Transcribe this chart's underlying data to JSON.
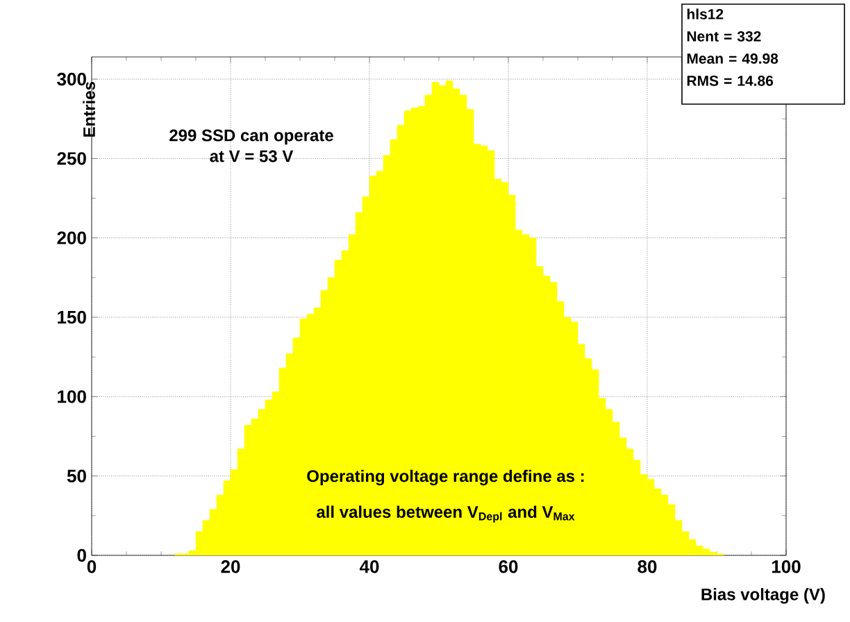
{
  "chart_data": {
    "type": "histogram",
    "xlabel": "Bias voltage (V)",
    "ylabel": "Entries",
    "bins": [
      12,
      13,
      14,
      15,
      16,
      17,
      18,
      19,
      20,
      21,
      22,
      23,
      24,
      25,
      26,
      27,
      28,
      29,
      30,
      31,
      32,
      33,
      34,
      35,
      36,
      37,
      38,
      39,
      40,
      41,
      42,
      43,
      44,
      45,
      46,
      47,
      48,
      49,
      50,
      51,
      52,
      53,
      54,
      55,
      56,
      57,
      58,
      59,
      60,
      61,
      62,
      63,
      64,
      65,
      66,
      67,
      68,
      69,
      70,
      71,
      72,
      73,
      74,
      75,
      76,
      77,
      78,
      79,
      80,
      81,
      82,
      83,
      84,
      85,
      86,
      87,
      88,
      89,
      90,
      91
    ],
    "values": [
      1,
      1,
      3,
      15,
      22,
      29,
      38,
      47,
      54,
      67,
      82,
      86,
      92,
      98,
      103,
      118,
      127,
      137,
      149,
      152,
      156,
      167,
      175,
      186,
      192,
      202,
      216,
      226,
      239,
      242,
      252,
      262,
      271,
      280,
      282,
      283,
      290,
      298,
      296,
      299,
      294,
      290,
      281,
      259,
      258,
      255,
      237,
      235,
      227,
      205,
      202,
      200,
      182,
      176,
      172,
      160,
      150,
      147,
      133,
      124,
      117,
      99,
      92,
      84,
      74,
      67,
      60,
      51,
      48,
      42,
      38,
      32,
      22,
      15,
      10,
      6,
      4,
      2,
      1
    ],
    "color": "#ffff00",
    "xlim": [
      0,
      100
    ],
    "ylim": [
      0,
      314
    ],
    "xticks": [
      0,
      20,
      40,
      60,
      80,
      100
    ],
    "yticks": [
      0,
      50,
      100,
      150,
      200,
      250,
      300
    ],
    "grid": true,
    "legend": false,
    "annotations": [
      "hls12",
      "Nent = 332",
      "Mean  =  49.98",
      "RMS   =  14.86",
      "299 SSD can operate",
      "at V = 53 V",
      "Operating voltage range define as :",
      "all values between V$_{Depl}$ and V$_{Max}$"
    ]
  }
}
